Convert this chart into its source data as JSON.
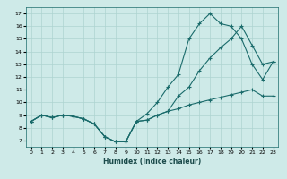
{
  "xlabel": "Humidex (Indice chaleur)",
  "bg_color": "#ceeae8",
  "grid_color": "#aed4d0",
  "line_color": "#1a6b6b",
  "xlim": [
    -0.5,
    23.5
  ],
  "ylim": [
    6.5,
    17.5
  ],
  "xticks": [
    0,
    1,
    2,
    3,
    4,
    5,
    6,
    7,
    8,
    9,
    10,
    11,
    12,
    13,
    14,
    15,
    16,
    17,
    18,
    19,
    20,
    21,
    22,
    23
  ],
  "yticks": [
    7,
    8,
    9,
    10,
    11,
    12,
    13,
    14,
    15,
    16,
    17
  ],
  "line1_x": [
    0,
    1,
    2,
    3,
    4,
    5,
    6,
    7,
    8,
    9,
    10,
    11,
    12,
    13,
    14,
    15,
    16,
    17,
    18,
    19,
    20,
    21,
    22,
    23
  ],
  "line1_y": [
    8.5,
    9.0,
    8.8,
    9.0,
    8.9,
    8.7,
    8.3,
    7.3,
    6.9,
    6.9,
    8.5,
    8.6,
    9.0,
    9.3,
    10.5,
    11.2,
    12.5,
    13.5,
    14.3,
    15.0,
    16.0,
    14.5,
    13.0,
    13.2
  ],
  "line2_x": [
    0,
    1,
    2,
    3,
    4,
    5,
    6,
    7,
    8,
    9,
    10,
    11,
    12,
    13,
    14,
    15,
    16,
    17,
    18,
    19,
    20,
    21,
    22,
    23
  ],
  "line2_y": [
    8.5,
    9.0,
    8.8,
    9.0,
    8.9,
    8.7,
    8.3,
    7.3,
    6.9,
    6.9,
    8.5,
    9.1,
    10.0,
    11.2,
    12.2,
    15.0,
    16.2,
    17.0,
    16.2,
    16.0,
    15.0,
    13.0,
    11.8,
    13.2
  ],
  "line3_x": [
    0,
    1,
    2,
    3,
    4,
    5,
    6,
    7,
    8,
    9,
    10,
    11,
    12,
    13,
    14,
    15,
    16,
    17,
    18,
    19,
    20,
    21,
    22,
    23
  ],
  "line3_y": [
    8.5,
    9.0,
    8.8,
    9.0,
    8.9,
    8.7,
    8.3,
    7.3,
    6.9,
    6.9,
    8.5,
    8.6,
    9.0,
    9.3,
    9.5,
    9.8,
    10.0,
    10.2,
    10.4,
    10.6,
    10.8,
    11.0,
    10.5,
    10.5
  ]
}
